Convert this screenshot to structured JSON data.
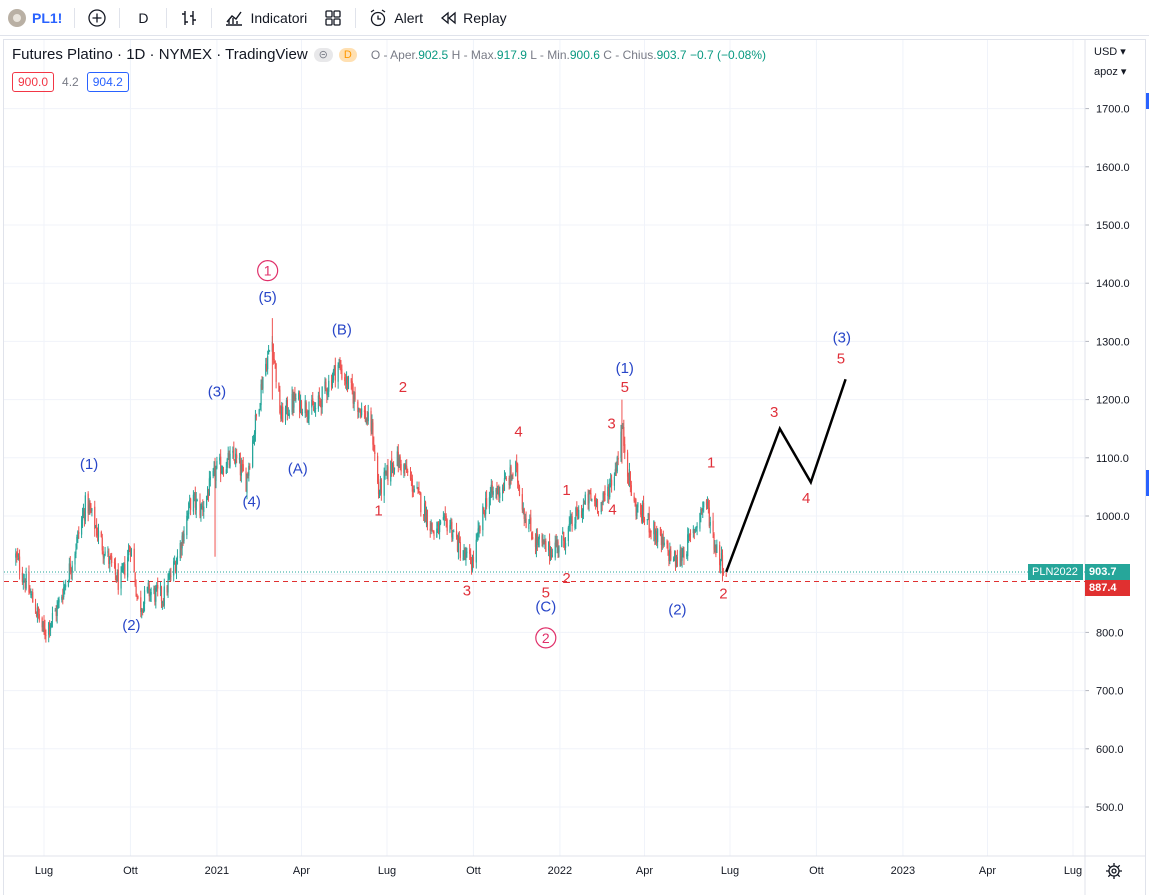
{
  "toolbar": {
    "symbol": "PL1!",
    "interval": "D",
    "indicators_label": "Indicatori",
    "alert_label": "Alert",
    "replay_label": "Replay"
  },
  "legend": {
    "title": "Futures Platino · 1D · NYMEX · TradingView",
    "pill_gray": "⊝",
    "pill_orange": "D",
    "o_label": "O - Aper.",
    "o_value": "902.5",
    "h_label": "H - Max.",
    "h_value": "917.9",
    "l_label": "L - Min.",
    "l_value": "900.6",
    "c_label": "C - Chius.",
    "c_value": "903.7",
    "change": "−0.7 (−0.08%)"
  },
  "price_boxes": {
    "sell": "900.0",
    "spread": "4.2",
    "buy": "904.2"
  },
  "axis_controls": {
    "currency": "USD ▾",
    "unit": "apoz ▾"
  },
  "price_tags": {
    "symbol_label": "PLN2022",
    "last_price": "903.7",
    "support_level": "887.4"
  },
  "colors": {
    "up": "#26a69a",
    "down": "#ef5350",
    "wave_blue": "#2846c8",
    "wave_red": "#e0303a",
    "circle_pink": "#e0306a",
    "projection": "#000000",
    "grid": "#f0f3fa",
    "support": "#e03030"
  },
  "chart_data": {
    "type": "candlestick",
    "title": "Futures Platino · 1D · NYMEX · TradingView",
    "ylim": [
      430,
      1830
    ],
    "y_ticks": [
      500,
      600,
      700,
      800,
      900,
      1000,
      1100,
      1200,
      1300,
      1400,
      1500,
      1600,
      1700
    ],
    "x_ticks": [
      {
        "label": "Lug",
        "date": "2020-07-01"
      },
      {
        "label": "Ott",
        "date": "2020-10-01"
      },
      {
        "label": "2021",
        "date": "2021-01-01"
      },
      {
        "label": "Apr",
        "date": "2021-04-01"
      },
      {
        "label": "Lug",
        "date": "2021-07-01"
      },
      {
        "label": "Ott",
        "date": "2021-10-01"
      },
      {
        "label": "2022",
        "date": "2022-01-01"
      },
      {
        "label": "Apr",
        "date": "2022-04-01"
      },
      {
        "label": "Lug",
        "date": "2022-07-01"
      },
      {
        "label": "Ott",
        "date": "2022-10-01"
      },
      {
        "label": "2023",
        "date": "2023-01-01"
      },
      {
        "label": "Apr",
        "date": "2023-04-01"
      },
      {
        "label": "Lug",
        "date": "2023-07-01"
      }
    ],
    "price_path": [
      [
        "2020-06-01",
        930
      ],
      [
        "2020-06-20",
        850
      ],
      [
        "2020-07-01",
        800
      ],
      [
        "2020-07-15",
        840
      ],
      [
        "2020-08-01",
        930
      ],
      [
        "2020-08-15",
        1025
      ],
      [
        "2020-09-01",
        950
      ],
      [
        "2020-09-20",
        880
      ],
      [
        "2020-10-01",
        950
      ],
      [
        "2020-10-10",
        840
      ],
      [
        "2020-10-20",
        870
      ],
      [
        "2020-11-05",
        860
      ],
      [
        "2020-11-20",
        930
      ],
      [
        "2020-12-05",
        1030
      ],
      [
        "2020-12-15",
        1010
      ],
      [
        "2021-01-01",
        1080
      ],
      [
        "2021-01-20",
        1100
      ],
      [
        "2021-02-01",
        1060
      ],
      [
        "2021-02-20",
        1250
      ],
      [
        "2021-03-01",
        1300
      ],
      [
        "2021-03-10",
        1170
      ],
      [
        "2021-03-25",
        1200
      ],
      [
        "2021-04-15",
        1180
      ],
      [
        "2021-05-10",
        1260
      ],
      [
        "2021-05-25",
        1210
      ],
      [
        "2021-06-15",
        1150
      ],
      [
        "2021-06-22",
        1040
      ],
      [
        "2021-07-10",
        1100
      ],
      [
        "2021-07-20",
        1080
      ],
      [
        "2021-08-10",
        1010
      ],
      [
        "2021-08-20",
        970
      ],
      [
        "2021-09-05",
        990
      ],
      [
        "2021-09-20",
        930
      ],
      [
        "2021-09-30",
        920
      ],
      [
        "2021-10-15",
        1030
      ],
      [
        "2021-11-01",
        1050
      ],
      [
        "2021-11-15",
        1080
      ],
      [
        "2021-11-25",
        1000
      ],
      [
        "2021-12-05",
        960
      ],
      [
        "2021-12-20",
        940
      ],
      [
        "2022-01-05",
        960
      ],
      [
        "2022-01-15",
        990
      ],
      [
        "2022-02-01",
        1030
      ],
      [
        "2022-02-15",
        1020
      ],
      [
        "2022-03-01",
        1080
      ],
      [
        "2022-03-08",
        1150
      ],
      [
        "2022-03-20",
        1020
      ],
      [
        "2022-04-05",
        990
      ],
      [
        "2022-04-20",
        950
      ],
      [
        "2022-05-05",
        920
      ],
      [
        "2022-05-20",
        960
      ],
      [
        "2022-06-05",
        1030
      ],
      [
        "2022-06-15",
        950
      ],
      [
        "2022-06-27",
        903.7
      ]
    ],
    "projection": [
      [
        "2022-06-27",
        904
      ],
      [
        "2022-08-23",
        1150
      ],
      [
        "2022-09-25",
        1058
      ],
      [
        "2022-11-01",
        1235
      ]
    ],
    "support_level": 887.4,
    "last_price": 903.7,
    "wave_labels": [
      {
        "text": "1",
        "date": "2021-02-24",
        "price": 1413,
        "style": "circle_pink"
      },
      {
        "text": "(5)",
        "date": "2021-02-24",
        "price": 1368,
        "style": "blue"
      },
      {
        "text": "(3)",
        "date": "2021-01-01",
        "price": 1205,
        "style": "blue"
      },
      {
        "text": "(A)",
        "date": "2021-03-28",
        "price": 1073,
        "style": "blue"
      },
      {
        "text": "(4)",
        "date": "2021-02-07",
        "price": 1016,
        "style": "blue"
      },
      {
        "text": "(B)",
        "date": "2021-05-14",
        "price": 1312,
        "style": "blue"
      },
      {
        "text": "(1)",
        "date": "2020-08-18",
        "price": 1081,
        "style": "blue"
      },
      {
        "text": "(2)",
        "date": "2020-10-02",
        "price": 804,
        "style": "blue"
      },
      {
        "text": "2",
        "date": "2021-07-18",
        "price": 1213,
        "style": "red"
      },
      {
        "text": "1",
        "date": "2021-06-22",
        "price": 1001,
        "style": "red"
      },
      {
        "text": "3",
        "date": "2021-09-24",
        "price": 863,
        "style": "red"
      },
      {
        "text": "4",
        "date": "2021-11-18",
        "price": 1137,
        "style": "red"
      },
      {
        "text": "5",
        "date": "2021-12-17",
        "price": 860,
        "style": "red"
      },
      {
        "text": "2",
        "date": "2022-01-08",
        "price": 885,
        "style": "red"
      },
      {
        "text": "(C)",
        "date": "2021-12-17",
        "price": 836,
        "style": "blue"
      },
      {
        "text": "2",
        "date": "2021-12-17",
        "price": 782,
        "style": "circle_pink"
      },
      {
        "text": "1",
        "date": "2022-01-08",
        "price": 1036,
        "style": "red"
      },
      {
        "text": "3",
        "date": "2022-02-25",
        "price": 1150,
        "style": "red"
      },
      {
        "text": "4",
        "date": "2022-02-26",
        "price": 1003,
        "style": "red"
      },
      {
        "text": "(1)",
        "date": "2022-03-11",
        "price": 1246,
        "style": "blue"
      },
      {
        "text": "5",
        "date": "2022-03-11",
        "price": 1213,
        "style": "red"
      },
      {
        "text": "(2)",
        "date": "2022-05-06",
        "price": 831,
        "style": "blue"
      },
      {
        "text": "1",
        "date": "2022-06-11",
        "price": 1083,
        "style": "red"
      },
      {
        "text": "2",
        "date": "2022-06-24",
        "price": 858,
        "style": "red"
      },
      {
        "text": "3",
        "date": "2022-08-17",
        "price": 1170,
        "style": "red"
      },
      {
        "text": "4",
        "date": "2022-09-20",
        "price": 1022,
        "style": "red"
      },
      {
        "text": "(3)",
        "date": "2022-10-28",
        "price": 1298,
        "style": "blue"
      },
      {
        "text": "5",
        "date": "2022-10-27",
        "price": 1262,
        "style": "red"
      }
    ]
  }
}
